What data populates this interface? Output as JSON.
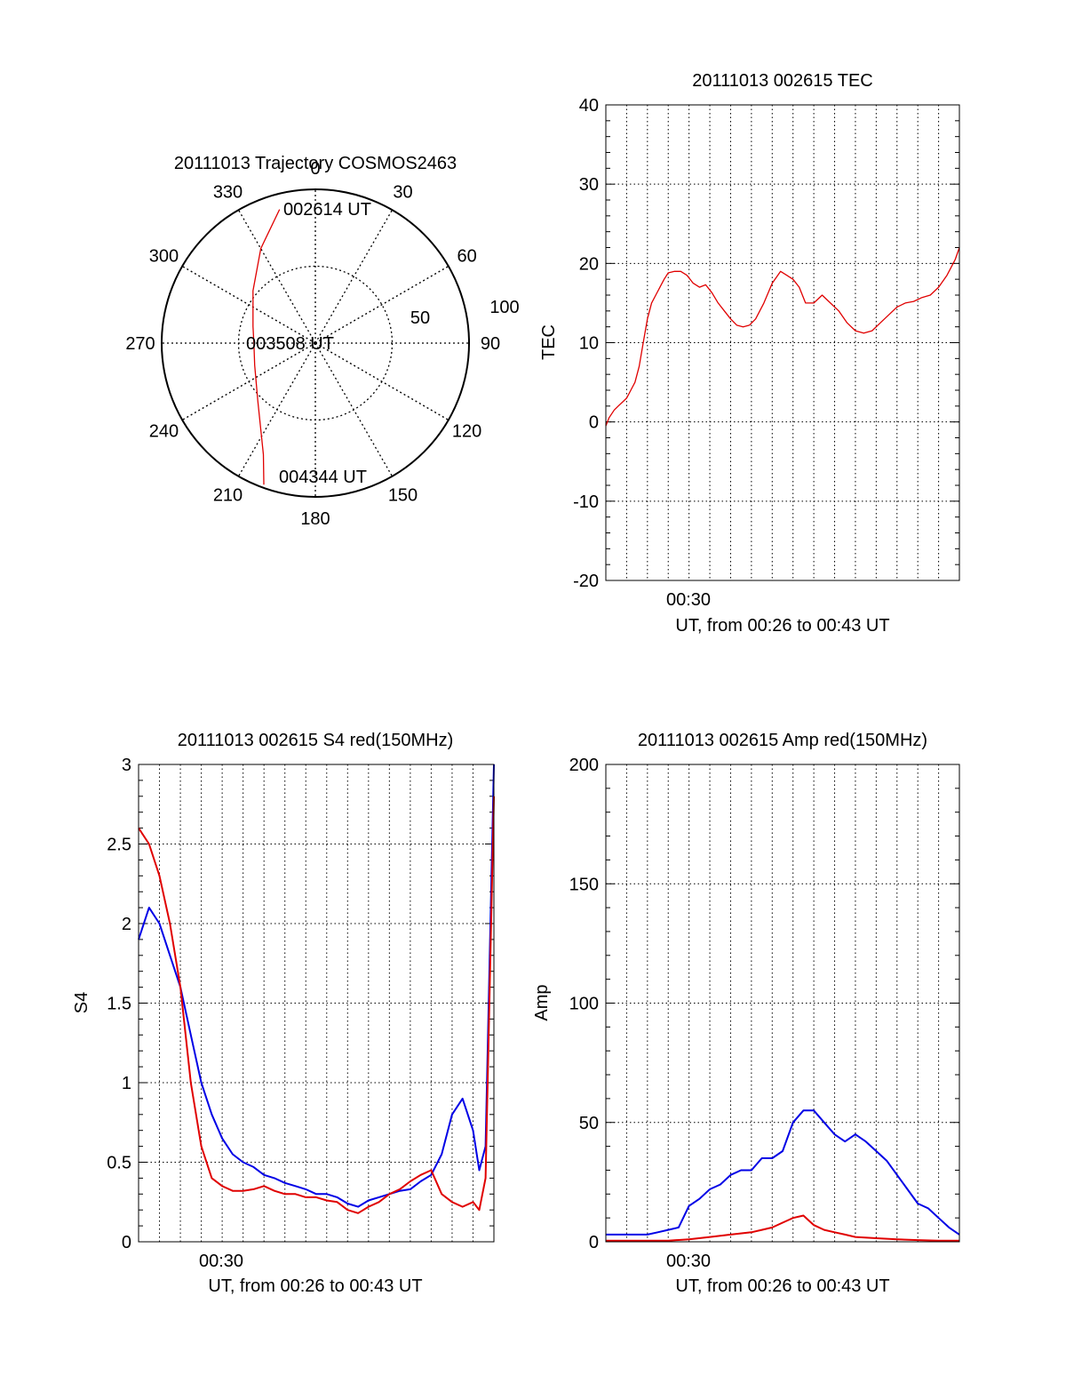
{
  "chart_data": [
    {
      "type": "polar",
      "title": "20111013 Trajectory COSMOS2463",
      "azimuth_labels": [
        "0",
        "30",
        "60",
        "90",
        "120",
        "150",
        "180",
        "210",
        "240",
        "270",
        "300",
        "330"
      ],
      "radial_labels": [
        "50",
        "100"
      ],
      "radial_range": [
        0,
        100
      ],
      "start_label": "002614 UT",
      "mid_label": "003508 UT",
      "end_label": "004344 UT",
      "trajectory": [
        [
          345,
          90
        ],
        [
          330,
          71
        ],
        [
          310,
          53
        ],
        [
          285,
          42
        ],
        [
          270,
          40
        ],
        [
          250,
          42
        ],
        [
          225,
          53
        ],
        [
          205,
          80
        ],
        [
          200,
          98
        ]
      ],
      "series_color": "#e00000",
      "grid": true
    },
    {
      "type": "line",
      "title": "20111013 002615 TEC",
      "ylabel": "TEC",
      "xlabel": "UT, from 00:26 to 00:43 UT",
      "x_tick_labels": [
        "00:30"
      ],
      "y_tick_labels": [
        "-20",
        "-10",
        "0",
        "10",
        "20",
        "30",
        "40"
      ],
      "xlim": [
        0,
        17
      ],
      "ylim": [
        -20,
        40
      ],
      "grid": true,
      "series": [
        {
          "color": "#e00000",
          "x": [
            0,
            0.15,
            0.4,
            0.6,
            0.8,
            1.0,
            1.2,
            1.4,
            1.6,
            1.8,
            2.0,
            2.2,
            2.4,
            2.6,
            2.8,
            3.0,
            3.3,
            3.6,
            3.9,
            4.2,
            4.5,
            4.8,
            5.1,
            5.4,
            5.7,
            6.0,
            6.3,
            6.6,
            6.9,
            7.2,
            7.6,
            8.0,
            8.4,
            8.7,
            9.0,
            9.3,
            9.6,
            10.0,
            10.4,
            10.8,
            11.2,
            11.6,
            12.0,
            12.4,
            12.8,
            13.2,
            13.6,
            14.0,
            14.4,
            14.8,
            15.2,
            15.6,
            16.0,
            16.4,
            16.8,
            17.0
          ],
          "y": [
            -0.5,
            0.5,
            1.5,
            2,
            2.5,
            3,
            4,
            5,
            7,
            10,
            13,
            15,
            16,
            17,
            18,
            18.8,
            19,
            19,
            18.5,
            17.5,
            17,
            17.3,
            16.3,
            15,
            14,
            13,
            12.2,
            12,
            12.2,
            13,
            15,
            17.5,
            19,
            18.5,
            18,
            17,
            15,
            15,
            16,
            15,
            14,
            12.5,
            11.5,
            11.2,
            11.5,
            12.5,
            13.5,
            14.5,
            15,
            15.2,
            15.7,
            16,
            17,
            18.5,
            20.5,
            22
          ]
        }
      ]
    },
    {
      "type": "line",
      "title": "20111013 002615 S4 red(150MHz)",
      "ylabel": "S4",
      "xlabel": "UT, from 00:26 to 00:43 UT",
      "x_tick_labels": [
        "00:30"
      ],
      "y_tick_labels": [
        "0",
        "0.5",
        "1",
        "1.5",
        "2",
        "2.5",
        "3"
      ],
      "xlim": [
        0,
        17
      ],
      "ylim": [
        0,
        3
      ],
      "grid": true,
      "series": [
        {
          "color": "#0000e6",
          "x": [
            0,
            0.5,
            1.0,
            1.5,
            2.0,
            2.5,
            3.0,
            3.5,
            4.0,
            4.5,
            5.0,
            5.5,
            6.0,
            6.5,
            7.0,
            7.5,
            8.0,
            8.5,
            9.0,
            9.5,
            10.0,
            10.5,
            11.0,
            11.5,
            12.0,
            12.5,
            13.0,
            13.5,
            14.0,
            14.5,
            15.0,
            15.5,
            16.0,
            16.3,
            16.6,
            17.0
          ],
          "y": [
            1.9,
            2.1,
            2.0,
            1.8,
            1.6,
            1.3,
            1.0,
            0.8,
            0.65,
            0.55,
            0.5,
            0.47,
            0.42,
            0.4,
            0.37,
            0.35,
            0.33,
            0.3,
            0.3,
            0.28,
            0.24,
            0.22,
            0.26,
            0.28,
            0.3,
            0.32,
            0.33,
            0.38,
            0.42,
            0.55,
            0.8,
            0.9,
            0.7,
            0.45,
            0.6,
            3.0
          ]
        },
        {
          "color": "#e00000",
          "x": [
            0,
            0.5,
            1.0,
            1.5,
            2.0,
            2.5,
            3.0,
            3.5,
            4.0,
            4.5,
            5.0,
            5.5,
            6.0,
            6.5,
            7.0,
            7.5,
            8.0,
            8.5,
            9.0,
            9.5,
            10.0,
            10.5,
            11.0,
            11.5,
            12.0,
            12.5,
            13.0,
            13.5,
            14.0,
            14.5,
            15.0,
            15.5,
            16.0,
            16.3,
            16.6,
            17.0
          ],
          "y": [
            2.6,
            2.5,
            2.3,
            2.0,
            1.6,
            1.0,
            0.6,
            0.4,
            0.35,
            0.32,
            0.32,
            0.33,
            0.35,
            0.32,
            0.3,
            0.3,
            0.28,
            0.28,
            0.26,
            0.25,
            0.2,
            0.18,
            0.22,
            0.25,
            0.3,
            0.33,
            0.38,
            0.42,
            0.45,
            0.3,
            0.25,
            0.22,
            0.25,
            0.2,
            0.4,
            2.8
          ]
        }
      ]
    },
    {
      "type": "line",
      "title": "20111013 002615 Amp red(150MHz)",
      "ylabel": "Amp",
      "xlabel": "UT, from 00:26 to 00:43 UT",
      "x_tick_labels": [
        "00:30"
      ],
      "y_tick_labels": [
        "0",
        "50",
        "100",
        "150",
        "200"
      ],
      "xlim": [
        0,
        17
      ],
      "ylim": [
        0,
        200
      ],
      "grid": true,
      "series": [
        {
          "color": "#0000e6",
          "x": [
            0,
            0.5,
            1.0,
            1.5,
            2.0,
            2.5,
            3.0,
            3.5,
            4.0,
            4.5,
            5.0,
            5.5,
            6.0,
            6.5,
            7.0,
            7.5,
            8.0,
            8.5,
            9.0,
            9.5,
            10.0,
            10.5,
            11.0,
            11.5,
            12.0,
            12.5,
            13.0,
            13.5,
            14.0,
            14.5,
            15.0,
            15.5,
            16.0,
            16.5,
            17.0
          ],
          "y": [
            3,
            3,
            3,
            3,
            3,
            4,
            5,
            6,
            15,
            18,
            22,
            24,
            28,
            30,
            30,
            35,
            35,
            38,
            50,
            55,
            55,
            50,
            45,
            42,
            45,
            42,
            38,
            34,
            28,
            22,
            16,
            14,
            10,
            6,
            3
          ]
        },
        {
          "color": "#e00000",
          "x": [
            0,
            1,
            2,
            3,
            4,
            5,
            6,
            7,
            7.5,
            8,
            8.5,
            9,
            9.5,
            10,
            10.5,
            11,
            11.5,
            12,
            13,
            14,
            15,
            16,
            17
          ],
          "y": [
            0.5,
            0.5,
            0.5,
            0.5,
            1,
            2,
            3,
            4,
            5,
            6,
            8,
            10,
            11,
            7,
            5,
            4,
            3,
            2,
            1.5,
            1,
            0.7,
            0.5,
            0.5
          ]
        }
      ]
    }
  ]
}
